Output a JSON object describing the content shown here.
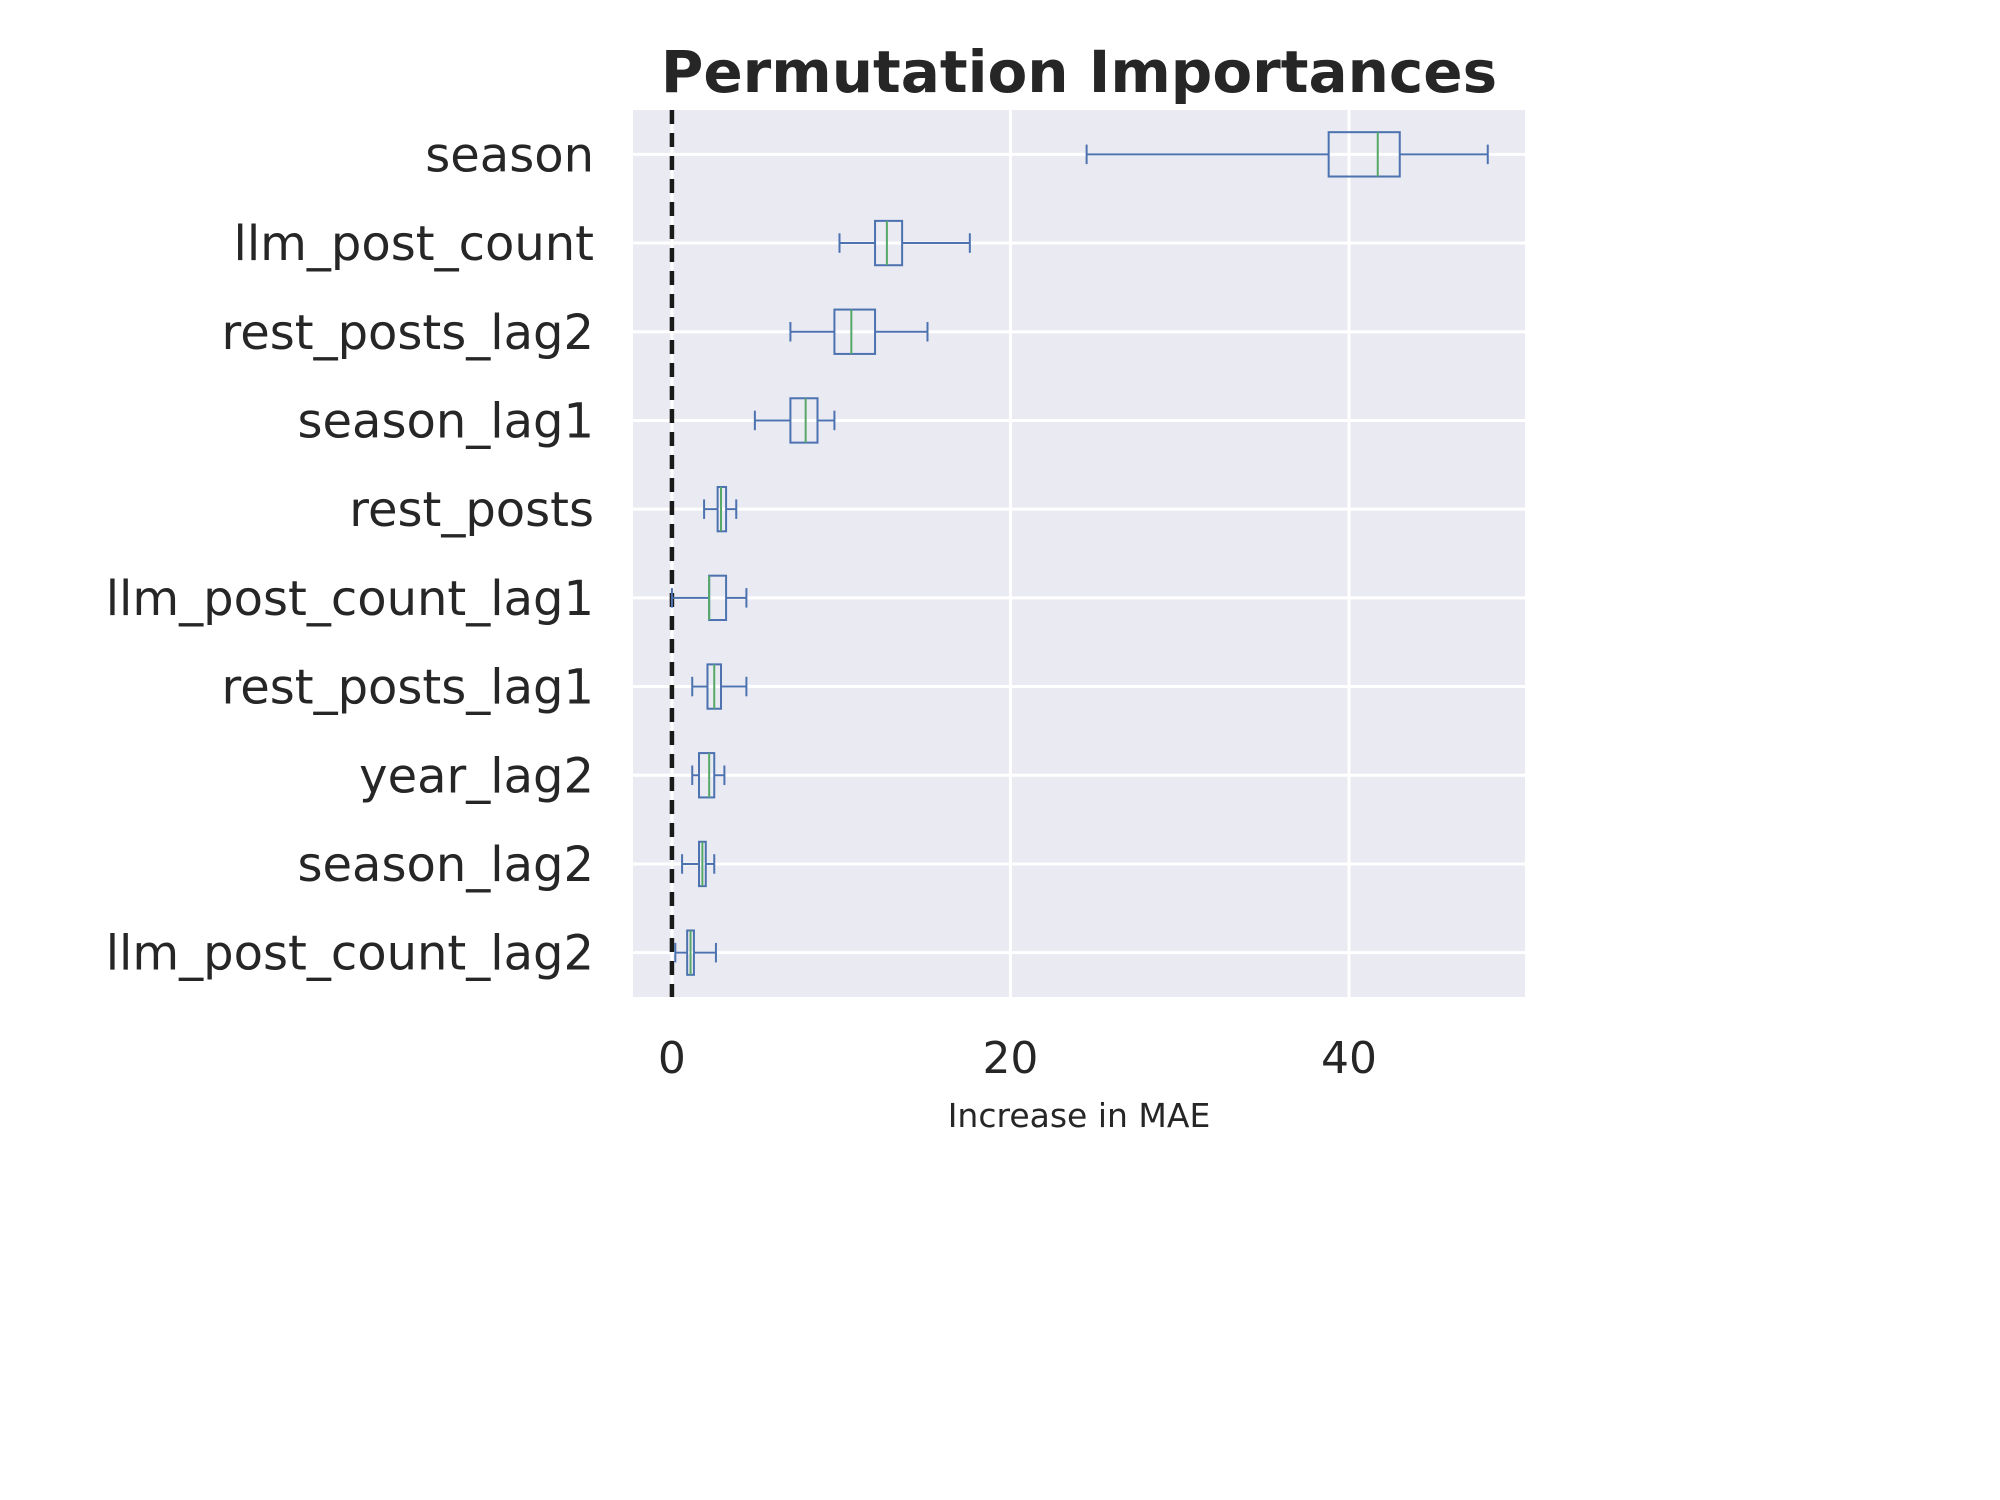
{
  "chart_data": {
    "type": "box",
    "orientation": "horizontal",
    "title": "Permutation Importances",
    "xlabel": "Increase in MAE",
    "ylabel": "",
    "xlim": [
      -2.3,
      50.4
    ],
    "xticks": [
      0,
      20,
      40
    ],
    "grid": true,
    "reference_line": {
      "x": 0,
      "style": "dashed",
      "color": "#1a1a1a"
    },
    "colors": {
      "box": "#4c72b0",
      "median": "#55a868",
      "background": "#eaeaf2",
      "grid": "#ffffff"
    },
    "categories": [
      "season",
      "llm_post_count",
      "rest_posts_lag2",
      "season_lag1",
      "rest_posts",
      "llm_post_count_lag1",
      "rest_posts_lag1",
      "year_lag2",
      "season_lag2",
      "llm_post_count_lag2"
    ],
    "boxes": [
      {
        "feature": "season",
        "whisker_low": 24.5,
        "q1": 38.8,
        "median": 41.7,
        "q3": 43.0,
        "whisker_high": 48.2
      },
      {
        "feature": "llm_post_count",
        "whisker_low": 9.9,
        "q1": 12.0,
        "median": 12.7,
        "q3": 13.6,
        "whisker_high": 17.6
      },
      {
        "feature": "rest_posts_lag2",
        "whisker_low": 7.0,
        "q1": 9.6,
        "median": 10.6,
        "q3": 12.0,
        "whisker_high": 15.1
      },
      {
        "feature": "season_lag1",
        "whisker_low": 4.9,
        "q1": 7.0,
        "median": 7.9,
        "q3": 8.6,
        "whisker_high": 9.6
      },
      {
        "feature": "rest_posts",
        "whisker_low": 1.9,
        "q1": 2.7,
        "median": 2.9,
        "q3": 3.2,
        "whisker_high": 3.8
      },
      {
        "feature": "llm_post_count_lag1",
        "whisker_low": 0.0,
        "q1": 2.2,
        "median": 2.2,
        "q3": 3.2,
        "whisker_high": 4.4
      },
      {
        "feature": "rest_posts_lag1",
        "whisker_low": 1.2,
        "q1": 2.1,
        "median": 2.5,
        "q3": 2.9,
        "whisker_high": 4.4
      },
      {
        "feature": "year_lag2",
        "whisker_low": 1.2,
        "q1": 1.6,
        "median": 2.2,
        "q3": 2.5,
        "whisker_high": 3.1
      },
      {
        "feature": "season_lag2",
        "whisker_low": 0.6,
        "q1": 1.6,
        "median": 1.8,
        "q3": 2.0,
        "whisker_high": 2.5
      },
      {
        "feature": "llm_post_count_lag2",
        "whisker_low": 0.2,
        "q1": 0.9,
        "median": 1.1,
        "q3": 1.3,
        "whisker_high": 2.6
      }
    ]
  }
}
